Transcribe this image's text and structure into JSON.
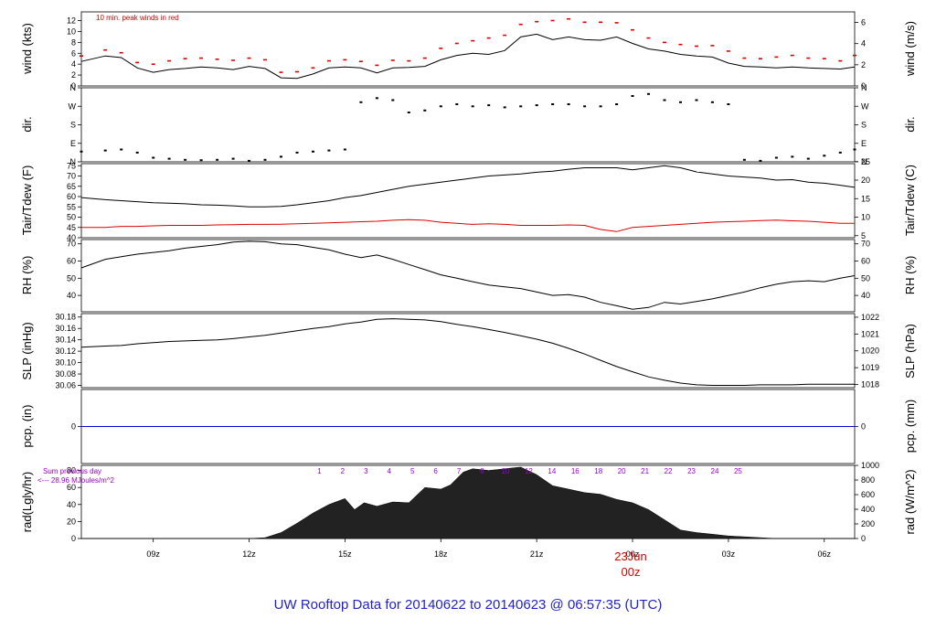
{
  "title": "UW Rooftop Data for 20140622  to  20140623 @ 06:57:35  (UTC)",
  "colors": {
    "title": "#2222cc",
    "peak": "#dd0000",
    "dew": "#dd0000",
    "pcp": "#0000cc",
    "rad_label": "#9900cc",
    "date": "#dd0000",
    "line": "#000000"
  },
  "panels": {
    "wind": {
      "left_label": "wind (kts)",
      "right_label": "wind (m/s)",
      "note": "10 min. peak winds in red",
      "left_ticks": [
        "0",
        "2",
        "4",
        "6",
        "8",
        "10",
        "12"
      ],
      "right_ticks": [
        "0",
        "2",
        "4",
        "6"
      ]
    },
    "dir": {
      "left_label": "dir.",
      "right_label": "dir.",
      "ticks": [
        "N",
        "E",
        "S",
        "W",
        "N"
      ]
    },
    "temp": {
      "left_label": "Tair/Tdew (F)",
      "right_label": "Tair/Tdew (C)",
      "left_ticks": [
        "40",
        "45",
        "50",
        "55",
        "60",
        "65",
        "70",
        "75"
      ],
      "right_ticks": [
        "5",
        "10",
        "15",
        "20",
        "25"
      ]
    },
    "rh": {
      "left_label": "RH (%)",
      "right_label": "RH (%)",
      "left_ticks": [
        "40",
        "50",
        "60",
        "70"
      ],
      "right_ticks": [
        "40",
        "50",
        "60",
        "70"
      ]
    },
    "slp": {
      "left_label": "SLP (inHg)",
      "right_label": "SLP (hPa)",
      "left_ticks": [
        "30.06",
        "30.08",
        "30.10",
        "30.12",
        "30.14",
        "30.16",
        "30.18"
      ],
      "right_ticks": [
        "1018",
        "1019",
        "1020",
        "1021",
        "1022"
      ]
    },
    "pcp": {
      "left_label": "pcp. (in)",
      "right_label": "pcp. (mm)",
      "left_ticks": [
        "0"
      ],
      "right_ticks": [
        "0"
      ]
    },
    "rad": {
      "left_label": "rad(Lgly/hr)",
      "right_label": "rad (W/m^2)",
      "left_ticks": [
        "0",
        "20",
        "40",
        "60",
        "80"
      ],
      "right_ticks": [
        "0",
        "200",
        "400",
        "600",
        "800",
        "1000"
      ],
      "sum_line1": "Sum previous day",
      "sum_line2": "<--- 28.96 MJoules/m^2",
      "hour_markers": [
        "1",
        "2",
        "3",
        "4",
        "5",
        "6",
        "7",
        "8",
        "10",
        "12",
        "14",
        "16",
        "18",
        "20",
        "21",
        "22",
        "23",
        "24",
        "25"
      ]
    }
  },
  "x_ticks": [
    "09z",
    "12z",
    "15z",
    "18z",
    "21z",
    "00z",
    "03z",
    "06z"
  ],
  "date_label": {
    "day": "23Jun",
    "hour": "00z"
  },
  "chart_data": {
    "type": "line",
    "x_unit": "hours UTC since 2014-06-22 00z",
    "xlim": [
      6.75,
      30.95
    ],
    "x_ticks_hours": [
      9,
      12,
      15,
      18,
      21,
      24,
      27,
      30
    ],
    "wind": {
      "ylabel": "wind (kts)",
      "ylim": [
        0,
        13.6
      ],
      "x": [
        6.75,
        7.5,
        8,
        8.5,
        9,
        9.5,
        10,
        10.5,
        11,
        11.5,
        12,
        12.5,
        13,
        13.5,
        14,
        14.5,
        15,
        15.5,
        16,
        16.5,
        17,
        17.5,
        18,
        18.5,
        19,
        19.5,
        20,
        20.5,
        21,
        21.5,
        22,
        22.5,
        23,
        23.5,
        24,
        24.5,
        25,
        25.5,
        26,
        26.5,
        27,
        27.5,
        28,
        28.5,
        29,
        29.5,
        30,
        30.5,
        30.95
      ],
      "speed": [
        4.5,
        5.5,
        5.2,
        3.3,
        2.5,
        3,
        3.2,
        3.5,
        3.3,
        3,
        3.6,
        3.2,
        1.5,
        1.4,
        2.2,
        3.3,
        3.5,
        3.3,
        2.4,
        3.3,
        3.4,
        3.6,
        4.8,
        5.6,
        6,
        5.8,
        6.5,
        9,
        9.5,
        8.5,
        9,
        8.5,
        8.4,
        9,
        7.8,
        6.8,
        6.4,
        5.8,
        5.5,
        5.3,
        4.2,
        3.6,
        3.5,
        3.3,
        3.5,
        3.3,
        3.2,
        3.1,
        3.5
      ],
      "peak": [
        5.5,
        6.6,
        6.1,
        4.3,
        4,
        4.6,
        5,
        5.1,
        4.9,
        4.7,
        5.1,
        4.8,
        2.5,
        2.6,
        3.3,
        4.6,
        4.8,
        4.5,
        3.8,
        4.7,
        4.6,
        5.1,
        6.9,
        7.8,
        8.3,
        8.8,
        9.3,
        11.3,
        11.8,
        12,
        12.3,
        11.7,
        11.7,
        11.6,
        10.3,
        8.8,
        8,
        7.6,
        7.3,
        7.4,
        6.4,
        5.1,
        5,
        5.3,
        5.6,
        5.1,
        5,
        4.6,
        5.6
      ]
    },
    "dir": {
      "ylabel": "dir.",
      "categories": [
        "N",
        "E",
        "S",
        "W",
        "N"
      ],
      "x": [
        6.75,
        7.5,
        8,
        8.5,
        9,
        9.5,
        10,
        10.5,
        11,
        11.5,
        12,
        12.5,
        13,
        13.5,
        14,
        14.5,
        15,
        15.5,
        16,
        16.5,
        17,
        17.5,
        18,
        18.5,
        19,
        19.5,
        20,
        20.5,
        21,
        21.5,
        22,
        22.5,
        23,
        23.5,
        24,
        24.5,
        25,
        25.5,
        26,
        26.5,
        27,
        27.5,
        28,
        28.5,
        29,
        29.5,
        30,
        30.5,
        30.95
      ],
      "degrees": [
        50,
        55,
        60,
        45,
        20,
        15,
        10,
        8,
        10,
        15,
        5,
        10,
        25,
        45,
        50,
        55,
        60,
        290,
        310,
        300,
        240,
        250,
        270,
        280,
        270,
        275,
        265,
        270,
        275,
        280,
        280,
        270,
        270,
        280,
        320,
        330,
        300,
        290,
        300,
        290,
        280,
        10,
        5,
        20,
        25,
        15,
        30,
        45,
        60
      ]
    },
    "tair": {
      "ylabel": "Tair/Tdew (F)",
      "ylim": [
        40,
        76
      ],
      "x": [
        6.75,
        7.5,
        8,
        8.5,
        9,
        9.5,
        10,
        10.5,
        11,
        11.5,
        12,
        12.5,
        13,
        13.5,
        14,
        14.5,
        15,
        15.5,
        16,
        16.5,
        17,
        17.5,
        18,
        18.5,
        19,
        19.5,
        20,
        20.5,
        21,
        21.5,
        22,
        22.5,
        23,
        23.5,
        24,
        24.5,
        25,
        25.5,
        26,
        26.5,
        27,
        27.5,
        28,
        28.5,
        29,
        29.5,
        30,
        30.5,
        30.95
      ],
      "y": [
        59.5,
        58.5,
        58,
        57.5,
        57,
        56.8,
        56.5,
        56,
        55.8,
        55.5,
        55,
        55,
        55.2,
        56,
        57,
        58,
        59.5,
        60.5,
        62,
        63.5,
        65,
        66,
        67,
        68,
        69,
        70,
        70.5,
        71,
        71.8,
        72.3,
        73.3,
        74,
        74,
        74,
        73,
        74,
        75,
        74,
        72,
        71,
        70,
        69.5,
        69,
        68,
        68.2,
        67,
        66.5,
        65.5,
        64.5
      ]
    },
    "tdew": {
      "ylabel": "Tair/Tdew (F)",
      "x": [
        6.75,
        7.5,
        8,
        8.5,
        9,
        9.5,
        10,
        10.5,
        11,
        11.5,
        12,
        12.5,
        13,
        13.5,
        14,
        14.5,
        15,
        15.5,
        16,
        16.5,
        17,
        17.5,
        18,
        18.5,
        19,
        19.5,
        20,
        20.5,
        21,
        21.5,
        22,
        22.5,
        23,
        23.5,
        24,
        24.5,
        25,
        25.5,
        26,
        26.5,
        27,
        27.5,
        28,
        28.5,
        29,
        29.5,
        30,
        30.5,
        30.95
      ],
      "y": [
        45,
        45,
        45.5,
        45.5,
        45.8,
        46,
        46,
        46,
        46.2,
        46.3,
        46.5,
        46.5,
        46.6,
        46.8,
        47,
        47.2,
        47.5,
        47.8,
        48,
        48.5,
        48.8,
        48.5,
        47.5,
        47,
        46.5,
        46.8,
        46.5,
        46,
        46,
        46,
        46.2,
        46,
        44,
        43,
        45,
        45.5,
        46,
        46.5,
        47,
        47.5,
        47.8,
        48,
        48.3,
        48.6,
        48.2,
        48,
        47.5,
        47,
        47
      ]
    },
    "rh": {
      "ylabel": "RH (%)",
      "ylim": [
        30.5,
        72.5
      ],
      "x": [
        6.75,
        7.5,
        8,
        8.5,
        9,
        9.5,
        10,
        10.5,
        11,
        11.5,
        12,
        12.5,
        13,
        13.5,
        14,
        14.5,
        15,
        15.5,
        16,
        16.5,
        17,
        17.5,
        18,
        18.5,
        19,
        19.5,
        20,
        20.5,
        21,
        21.5,
        22,
        22.5,
        23,
        23.5,
        24,
        24.5,
        25,
        25.5,
        26,
        26.5,
        27,
        27.5,
        28,
        28.5,
        29,
        29.5,
        30,
        30.5,
        30.95
      ],
      "y": [
        56,
        61,
        62.5,
        64,
        65,
        66,
        67.5,
        68.5,
        69.5,
        71,
        71.5,
        71.2,
        70,
        69.5,
        68,
        66.5,
        64,
        62,
        63.5,
        61,
        58,
        55,
        52,
        50,
        48,
        46,
        45,
        44,
        42,
        40,
        40.5,
        39,
        36,
        34,
        32,
        33,
        36,
        35,
        36.5,
        38,
        40,
        42,
        44.5,
        46.5,
        48,
        48.5,
        48,
        50,
        51.5
      ]
    },
    "slp": {
      "ylabel": "SLP (inHg)",
      "ylim": [
        30.056,
        30.186
      ],
      "x": [
        6.75,
        7.5,
        8,
        8.5,
        9,
        9.5,
        10,
        10.5,
        11,
        11.5,
        12,
        12.5,
        13,
        13.5,
        14,
        14.5,
        15,
        15.5,
        16,
        16.5,
        17,
        17.5,
        18,
        18.5,
        19,
        19.5,
        20,
        20.5,
        21,
        21.5,
        22,
        22.5,
        23,
        23.5,
        24,
        24.5,
        25,
        25.5,
        26,
        26.5,
        27,
        27.5,
        28,
        28.5,
        29,
        29.5,
        30,
        30.5,
        30.95
      ],
      "y": [
        30.127,
        30.129,
        30.13,
        30.133,
        30.135,
        30.137,
        30.138,
        30.139,
        30.14,
        30.142,
        30.145,
        30.148,
        30.152,
        30.156,
        30.16,
        30.163,
        30.168,
        30.171,
        30.176,
        30.177,
        30.176,
        30.175,
        30.172,
        30.167,
        30.163,
        30.158,
        30.153,
        30.147,
        30.141,
        30.134,
        30.125,
        30.115,
        30.104,
        30.093,
        30.084,
        30.075,
        30.069,
        30.064,
        30.061,
        30.06,
        30.06,
        30.06,
        30.061,
        30.061,
        30.061,
        30.062,
        30.062,
        30.062,
        30.062
      ]
    },
    "pcp": {
      "ylabel": "pcp. (in)",
      "x": [
        6.75,
        30.95
      ],
      "y": [
        0,
        0
      ]
    },
    "rad": {
      "type": "area",
      "ylabel": "rad(Lgly/hr)",
      "ylim": [
        0,
        86
      ],
      "x": [
        6.75,
        8,
        9,
        10,
        11,
        12,
        12.5,
        13,
        13.5,
        14,
        14.5,
        15,
        15.3,
        15.6,
        16,
        16.5,
        17,
        17.5,
        18,
        18.3,
        18.7,
        19,
        19.5,
        20,
        20.5,
        21,
        21.5,
        22,
        22.5,
        23,
        23.5,
        24,
        24.5,
        25,
        25.5,
        26,
        26.5,
        27,
        27.5,
        28,
        28.5,
        30.95
      ],
      "y": [
        0,
        0,
        0,
        0,
        0,
        0,
        1,
        7,
        18,
        30,
        40,
        47,
        34,
        42,
        38,
        43,
        42,
        60,
        58,
        63,
        78,
        82,
        80,
        82,
        84,
        75,
        62,
        58,
        54,
        52,
        46,
        42,
        34,
        22,
        10,
        7,
        5,
        3,
        2,
        1,
        0,
        0
      ]
    }
  }
}
